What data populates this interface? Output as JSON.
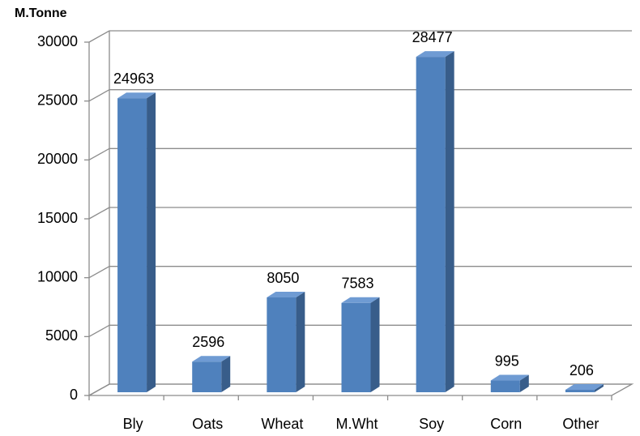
{
  "chart_data": {
    "type": "bar3d",
    "y_label": "M.Tonne",
    "categories": [
      "Bly",
      "Oats",
      "Wheat",
      "M.Wht",
      "Soy",
      "Corn",
      "Other"
    ],
    "values": [
      24963,
      2596,
      8050,
      7583,
      28477,
      995,
      206
    ],
    "color": "#4f81bd",
    "ylim": [
      0,
      30000
    ],
    "yticks": [
      0,
      5000,
      10000,
      15000,
      20000,
      25000,
      30000
    ],
    "grid": true
  }
}
